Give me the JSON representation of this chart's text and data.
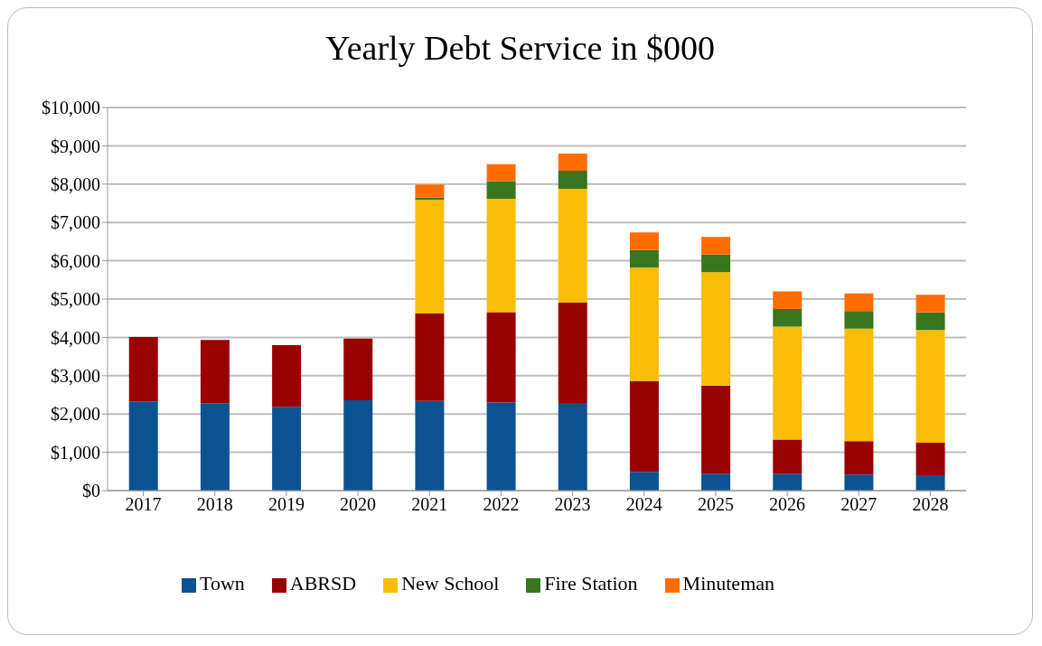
{
  "chart_data": {
    "type": "bar",
    "title": "Yearly Debt Service in $000",
    "stacked": true,
    "grid": "y",
    "legend": "bottom",
    "categories": [
      "2017",
      "2018",
      "2019",
      "2020",
      "2021",
      "2022",
      "2023",
      "2024",
      "2025",
      "2026",
      "2027",
      "2028"
    ],
    "ylim": [
      0,
      10000
    ],
    "yticks": [
      {
        "value": 0,
        "label": "$0"
      },
      {
        "value": 1000,
        "label": "$1,000"
      },
      {
        "value": 2000,
        "label": "$2,000"
      },
      {
        "value": 3000,
        "label": "$3,000"
      },
      {
        "value": 4000,
        "label": "$4,000"
      },
      {
        "value": 5000,
        "label": "$5,000"
      },
      {
        "value": 6000,
        "label": "$6,000"
      },
      {
        "value": 7000,
        "label": "$7,000"
      },
      {
        "value": 8000,
        "label": "$8,000"
      },
      {
        "value": 9000,
        "label": "$9,000"
      },
      {
        "value": 10000,
        "label": "$10,000"
      }
    ],
    "series": [
      {
        "name": "Town",
        "color": "#0c5291",
        "values": [
          2330,
          2280,
          2190,
          2360,
          2340,
          2300,
          2290,
          490,
          440,
          440,
          420,
          400
        ]
      },
      {
        "name": "ABRSD",
        "color": "#990000",
        "values": [
          1680,
          1650,
          1610,
          1610,
          2290,
          2360,
          2620,
          2370,
          2300,
          890,
          870,
          850
        ]
      },
      {
        "name": "New School",
        "color": "#fbbc06",
        "values": [
          0,
          0,
          0,
          0,
          2960,
          2960,
          2970,
          2960,
          2960,
          2950,
          2940,
          2940
        ]
      },
      {
        "name": "Fire Station",
        "color": "#38761d",
        "values": [
          0,
          0,
          0,
          0,
          60,
          460,
          470,
          460,
          460,
          460,
          460,
          460
        ]
      },
      {
        "name": "Minuteman",
        "color": "#ff6d01",
        "values": [
          0,
          0,
          0,
          0,
          340,
          440,
          450,
          460,
          460,
          460,
          460,
          460
        ]
      }
    ]
  }
}
